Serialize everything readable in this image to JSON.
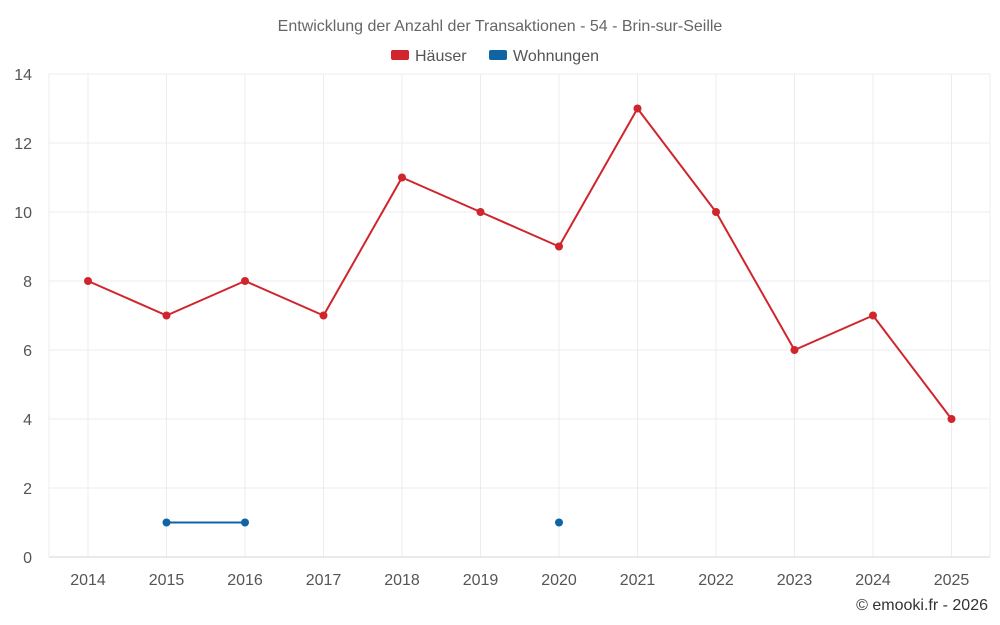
{
  "chart_data": {
    "type": "line",
    "title": "Entwicklung der Anzahl der Transaktionen - 54 - Brin-sur-Seille",
    "xlabel": "",
    "ylabel": "",
    "categories": [
      "2014",
      "2015",
      "2016",
      "2017",
      "2018",
      "2019",
      "2020",
      "2021",
      "2022",
      "2023",
      "2024",
      "2025"
    ],
    "ylim": [
      0,
      14
    ],
    "yticks": [
      "0",
      "2",
      "4",
      "6",
      "8",
      "10",
      "12",
      "14"
    ],
    "grid": true,
    "legend_position": "top-center",
    "series": [
      {
        "name": "Häuser",
        "color": "#d0252c",
        "values": [
          8,
          7,
          8,
          7,
          11,
          10,
          9,
          13,
          10,
          6,
          7,
          4
        ]
      },
      {
        "name": "Wohnungen",
        "color": "#0f64a3",
        "values": [
          null,
          1,
          1,
          null,
          null,
          null,
          1,
          null,
          null,
          null,
          null,
          null
        ]
      }
    ]
  },
  "credit": "© emooki.fr - 2026"
}
